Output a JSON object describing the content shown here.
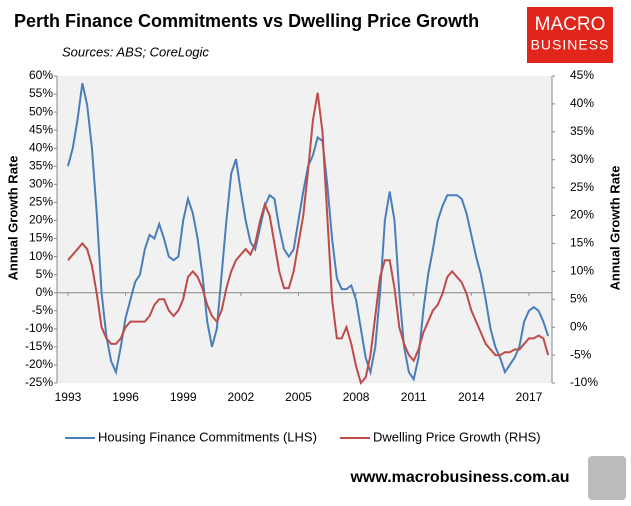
{
  "chart_data": {
    "type": "line",
    "title": "Perth Finance Commitments vs Dwelling Price Growth",
    "subtitle": "Sources: ABS; CoreLogic",
    "y_label": "Annual Growth Rate",
    "y2_label": "Annual Growth Rate",
    "x": [
      1993,
      1993.25,
      1993.5,
      1993.75,
      1994,
      1994.25,
      1994.5,
      1994.75,
      1995,
      1995.25,
      1995.5,
      1995.75,
      1996,
      1996.25,
      1996.5,
      1996.75,
      1997,
      1997.25,
      1997.5,
      1997.75,
      1998,
      1998.25,
      1998.5,
      1998.75,
      1999,
      1999.25,
      1999.5,
      1999.75,
      2000,
      2000.25,
      2000.5,
      2000.75,
      2001,
      2001.25,
      2001.5,
      2001.75,
      2002,
      2002.25,
      2002.5,
      2002.75,
      2003,
      2003.25,
      2003.5,
      2003.75,
      2004,
      2004.25,
      2004.5,
      2004.75,
      2005,
      2005.25,
      2005.5,
      2005.75,
      2006,
      2006.25,
      2006.5,
      2006.75,
      2007,
      2007.25,
      2007.5,
      2007.75,
      2008,
      2008.25,
      2008.5,
      2008.75,
      2009,
      2009.25,
      2009.5,
      2009.75,
      2010,
      2010.25,
      2010.5,
      2010.75,
      2011,
      2011.25,
      2011.5,
      2011.75,
      2012,
      2012.25,
      2012.5,
      2012.75,
      2013,
      2013.25,
      2013.5,
      2013.75,
      2014,
      2014.25,
      2014.5,
      2014.75,
      2015,
      2015.25,
      2015.5,
      2015.75,
      2016,
      2016.25,
      2016.5,
      2016.75,
      2017,
      2017.25,
      2017.5,
      2017.75,
      2018
    ],
    "series": [
      {
        "name": "Housing Finance Commitments (LHS)",
        "color": "#4a7ebb",
        "axis": "y",
        "values": [
          35,
          40,
          48,
          58,
          52,
          40,
          22,
          0,
          -12,
          -19,
          -22,
          -15,
          -7,
          -2,
          3,
          5,
          12,
          16,
          15,
          19,
          15,
          10,
          9,
          10,
          20,
          26,
          22,
          15,
          5,
          -8,
          -15,
          -10,
          5,
          20,
          33,
          37,
          28,
          20,
          14,
          12,
          18,
          24,
          27,
          26,
          18,
          12,
          10,
          12,
          20,
          28,
          35,
          38,
          43,
          42,
          30,
          15,
          4,
          1,
          1,
          2,
          -2,
          -10,
          -18,
          -22,
          -15,
          0,
          20,
          28,
          20,
          0,
          -15,
          -22,
          -24,
          -18,
          -5,
          5,
          12,
          20,
          24,
          27,
          27,
          27,
          26,
          22,
          16,
          10,
          5,
          -2,
          -10,
          -15,
          -18,
          -22,
          -20,
          -18,
          -15,
          -8,
          -5,
          -4,
          -5,
          -8,
          -12
        ]
      },
      {
        "name": "Dwelling Price Growth (RHS)",
        "color": "#be4b48",
        "axis": "y2",
        "values": [
          12,
          13,
          14,
          15,
          14,
          11,
          6,
          0,
          -2,
          -3,
          -3,
          -2,
          0,
          1,
          1,
          1,
          1,
          2,
          4,
          5,
          5,
          3,
          2,
          3,
          5,
          9,
          10,
          9,
          7,
          4,
          2,
          1,
          3,
          7,
          10,
          12,
          13,
          14,
          13,
          15,
          19,
          22,
          20,
          15,
          10,
          7,
          7,
          10,
          15,
          20,
          28,
          37,
          42,
          35,
          20,
          5,
          -2,
          -2,
          0,
          -3,
          -7,
          -10,
          -9,
          -5,
          2,
          9,
          12,
          12,
          7,
          0,
          -3,
          -5,
          -6,
          -4,
          -1,
          1,
          3,
          4,
          6,
          9,
          10,
          9,
          8,
          6,
          3,
          1,
          -1,
          -3,
          -4,
          -5,
          -5,
          -4.5,
          -4.5,
          -4,
          -4,
          -3,
          -2,
          -2,
          -1.5,
          -2,
          -5
        ]
      }
    ],
    "xlim": [
      1992.43,
      2018.2
    ],
    "xticks": [
      1993,
      1996,
      1999,
      2002,
      2005,
      2008,
      2011,
      2014,
      2017
    ],
    "ylim": [
      -25,
      60
    ],
    "yticks": [
      {
        "value": -25,
        "label": "-25%"
      },
      {
        "value": -20,
        "label": "-20%"
      },
      {
        "value": -15,
        "label": "-15%"
      },
      {
        "value": -10,
        "label": "-10%"
      },
      {
        "value": -5,
        "label": "-5%"
      },
      {
        "value": 0,
        "label": "0%"
      },
      {
        "value": 5,
        "label": "5%"
      },
      {
        "value": 10,
        "label": "10%"
      },
      {
        "value": 15,
        "label": "15%"
      },
      {
        "value": 20,
        "label": "20%"
      },
      {
        "value": 25,
        "label": "25%"
      },
      {
        "value": 30,
        "label": "30%"
      },
      {
        "value": 35,
        "label": "35%"
      },
      {
        "value": 40,
        "label": "40%"
      },
      {
        "value": 45,
        "label": "45%"
      },
      {
        "value": 50,
        "label": "50%"
      },
      {
        "value": 55,
        "label": "55%"
      },
      {
        "value": 60,
        "label": "60%"
      }
    ],
    "y2lim": [
      -10,
      45
    ],
    "y2ticks": [
      {
        "value": -10,
        "label": "-10%"
      },
      {
        "value": -5,
        "label": "-5%"
      },
      {
        "value": 0,
        "label": "0%"
      },
      {
        "value": 5,
        "label": "5%"
      },
      {
        "value": 10,
        "label": "10%"
      },
      {
        "value": 15,
        "label": "15%"
      },
      {
        "value": 20,
        "label": "20%"
      },
      {
        "value": 25,
        "label": "25%"
      },
      {
        "value": 30,
        "label": "30%"
      },
      {
        "value": 35,
        "label": "35%"
      },
      {
        "value": 40,
        "label": "40%"
      },
      {
        "value": 45,
        "label": "45%"
      }
    ],
    "legend": "bottom"
  },
  "logo": {
    "line1": "MACRO",
    "line2": "BUSINESS"
  },
  "footer": "www.macrobusiness.com.au"
}
